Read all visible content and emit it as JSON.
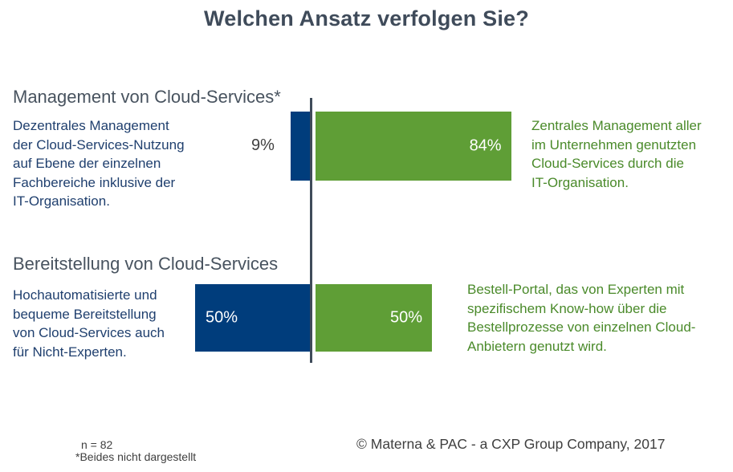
{
  "chart_data": {
    "type": "bar",
    "orientation": "horizontal-diverging",
    "title": "Welchen Ansatz verfolgen Sie?",
    "colors": {
      "left": "#003d7c",
      "right": "#5f9e36",
      "axis": "#3f4b5a"
    },
    "groups": [
      {
        "title": "Management von Cloud-Services*",
        "left": {
          "value": 9,
          "label": "9%",
          "label_position": "outside",
          "description": [
            "Dezentrales Management",
            "der Cloud-Services-Nutzung",
            "auf Ebene der einzelnen",
            "Fachbereiche inklusive der",
            "IT-Organisation."
          ]
        },
        "right": {
          "value": 84,
          "label": "84%",
          "label_position": "inside",
          "description": [
            "Zentrales Management aller",
            "im Unternehmen genutzten",
            "Cloud-Services durch die",
            "IT-Organisation."
          ]
        }
      },
      {
        "title": "Bereitstellung von Cloud-Services",
        "left": {
          "value": 50,
          "label": "50%",
          "label_position": "inside",
          "description": [
            "Hochautomatisierte und",
            "bequeme Bereitstellung",
            "von Cloud-Services auch",
            "für Nicht-Experten."
          ]
        },
        "right": {
          "value": 50,
          "label": "50%",
          "label_position": "inside",
          "description": [
            "Bestell-Portal, das von Experten mit",
            "spezifischem Know-how über die",
            "Bestellprozesse von einzelnen Cloud-",
            "Anbietern genutzt wird."
          ]
        }
      }
    ],
    "xlim": [
      -100,
      100
    ],
    "grid": false,
    "legend": "none"
  },
  "footer": {
    "sample": "n = 82",
    "note": "*Beides nicht dargestellt",
    "copyright": "© Materna & PAC - a CXP Group Company, 2017"
  }
}
